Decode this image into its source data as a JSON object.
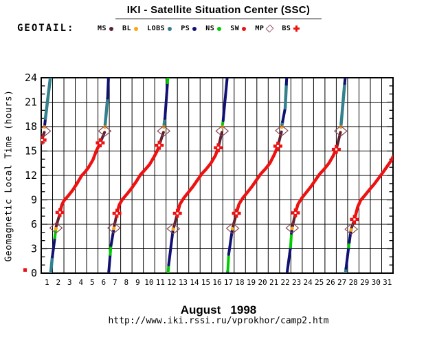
{
  "header": {
    "title": "IKI - Satellite Situation Center (SSC)",
    "satellite_label": "GEOTAIL:"
  },
  "legend": {
    "items": [
      {
        "label": "MS",
        "marker": "dot",
        "color": "#602030"
      },
      {
        "label": "BL",
        "marker": "dot",
        "color": "#ffa510"
      },
      {
        "label": "LOBS",
        "marker": "dot",
        "color": "#35808d"
      },
      {
        "label": "PS",
        "marker": "dot",
        "color": "#101173"
      },
      {
        "label": "NS",
        "marker": "dot",
        "color": "#00cc00"
      },
      {
        "label": "SW",
        "marker": "dot",
        "color": "#ee1111"
      },
      {
        "label": "MP",
        "marker": "diamond",
        "color": "#8a4a55"
      },
      {
        "label": "BS",
        "marker": "cross",
        "color": "#ee1111"
      }
    ]
  },
  "footer": {
    "month_year": "August   1998",
    "url": "http://www.iki.rssi.ru/vprokhor/camp2.htm"
  },
  "chart_data": {
    "type": "line",
    "title": "GEOTAIL geomagnetic local time vs day, August 1998",
    "xlabel": "",
    "ylabel": "Geomagnetic Local Time (hours)",
    "x_axis": {
      "range": [
        0,
        31
      ],
      "day_labels": [
        "1",
        "2",
        "3",
        "4",
        "5",
        "6",
        "7",
        "8",
        "9",
        "10",
        "11",
        "12",
        "13",
        "14",
        "15",
        "16",
        "17",
        "18",
        "19",
        "20",
        "21",
        "22",
        "23",
        "24",
        "25",
        "26",
        "27",
        "28",
        "29",
        "30",
        "31"
      ]
    },
    "y_axis": {
      "range": [
        0,
        24
      ],
      "major_ticks": [
        0,
        3,
        6,
        9,
        12,
        15,
        18,
        21,
        24
      ],
      "minor_step": 1,
      "grid_major_step": 3
    },
    "grid": "on",
    "colors": {
      "MS": "#602030",
      "BL": "#ffa510",
      "LOBS": "#35808d",
      "PS": "#101173",
      "NS": "#00cc00",
      "SW": "#ee1111",
      "MP": "#8a4a55",
      "BS": "#ee1111"
    },
    "line_widths": {
      "MS": 4,
      "BL": 4,
      "LOBS": 4.5,
      "PS": 4,
      "NS": 4,
      "SW": 4.5
    },
    "segments": [
      {
        "region": "MS",
        "points": [
          [
            0,
            16.1
          ],
          [
            0.27,
            17.3
          ]
        ]
      },
      {
        "region": "PS",
        "points": [
          [
            0.31,
            18.2
          ],
          [
            0.37,
            19.0
          ]
        ]
      },
      {
        "region": "LOBS",
        "points": [
          [
            0.37,
            19.0
          ],
          [
            0.82,
            24.2
          ]
        ]
      },
      {
        "region": "LOBS",
        "points": [
          [
            0.82,
            -0.2
          ],
          [
            0.98,
            2.0
          ]
        ]
      },
      {
        "region": "PS",
        "points": [
          [
            0.98,
            2.0
          ],
          [
            1.2,
            4.35
          ]
        ]
      },
      {
        "region": "NS",
        "points": [
          [
            1.2,
            4.35
          ],
          [
            1.27,
            5.2
          ]
        ]
      },
      {
        "region": "MS",
        "points": [
          [
            1.31,
            5.7
          ],
          [
            1.65,
            7.35
          ]
        ]
      },
      {
        "region": "SW",
        "points": [
          [
            1.65,
            7.45
          ],
          [
            1.82,
            8.4
          ],
          [
            2.0,
            8.9
          ],
          [
            2.35,
            9.45
          ],
          [
            2.75,
            10.15
          ],
          [
            3.15,
            11.0
          ],
          [
            3.55,
            11.95
          ],
          [
            3.85,
            12.4
          ],
          [
            4.15,
            12.95
          ],
          [
            4.55,
            13.9
          ],
          [
            4.85,
            15.0
          ],
          [
            5.2,
            16.0
          ]
        ]
      },
      {
        "region": "MS",
        "points": [
          [
            5.2,
            16.0
          ],
          [
            5.58,
            17.3
          ]
        ]
      },
      {
        "region": "LOBS",
        "points": [
          [
            5.63,
            18.2
          ],
          [
            5.85,
            21.5
          ]
        ]
      },
      {
        "region": "PS",
        "points": [
          [
            5.85,
            21.5
          ],
          [
            5.93,
            24.2
          ]
        ]
      },
      {
        "region": "PS",
        "points": [
          [
            5.93,
            -0.2
          ],
          [
            6.08,
            2.3
          ]
        ]
      },
      {
        "region": "NS",
        "points": [
          [
            6.08,
            2.3
          ],
          [
            6.15,
            3.4
          ]
        ]
      },
      {
        "region": "PS",
        "points": [
          [
            6.15,
            3.4
          ],
          [
            6.38,
            5.3
          ]
        ]
      },
      {
        "region": "MS",
        "points": [
          [
            6.43,
            5.75
          ],
          [
            6.67,
            7.3
          ]
        ]
      },
      {
        "region": "SW",
        "points": [
          [
            6.67,
            7.35
          ],
          [
            6.88,
            8.4
          ],
          [
            7.15,
            9.05
          ],
          [
            7.55,
            9.7
          ],
          [
            7.95,
            10.4
          ],
          [
            8.35,
            11.2
          ],
          [
            8.75,
            12.1
          ],
          [
            9.15,
            12.7
          ],
          [
            9.55,
            13.35
          ],
          [
            9.95,
            14.3
          ],
          [
            10.25,
            15.1
          ],
          [
            10.42,
            15.8
          ]
        ]
      },
      {
        "region": "MS",
        "points": [
          [
            10.42,
            15.8
          ],
          [
            10.77,
            17.3
          ]
        ]
      },
      {
        "region": "LOBS",
        "points": [
          [
            10.82,
            18.2
          ],
          [
            10.9,
            19.0
          ]
        ]
      },
      {
        "region": "PS",
        "points": [
          [
            10.9,
            19.0
          ],
          [
            11.13,
            23.4
          ]
        ]
      },
      {
        "region": "NS",
        "points": [
          [
            11.13,
            23.4
          ],
          [
            11.17,
            24.2
          ]
        ]
      },
      {
        "region": "NS",
        "points": [
          [
            11.17,
            -0.2
          ],
          [
            11.23,
            1.0
          ]
        ]
      },
      {
        "region": "PS",
        "points": [
          [
            11.23,
            1.0
          ],
          [
            11.6,
            5.2
          ]
        ]
      },
      {
        "region": "MS",
        "points": [
          [
            11.67,
            5.6
          ],
          [
            12.0,
            7.3
          ]
        ]
      },
      {
        "region": "SW",
        "points": [
          [
            12.0,
            7.35
          ],
          [
            12.22,
            8.45
          ],
          [
            12.55,
            9.2
          ],
          [
            12.95,
            9.9
          ],
          [
            13.35,
            10.6
          ],
          [
            13.75,
            11.4
          ],
          [
            14.15,
            12.2
          ],
          [
            14.55,
            12.8
          ],
          [
            14.95,
            13.5
          ],
          [
            15.35,
            14.45
          ],
          [
            15.62,
            15.5
          ]
        ]
      },
      {
        "region": "MS",
        "points": [
          [
            15.62,
            15.5
          ],
          [
            15.92,
            17.3
          ]
        ]
      },
      {
        "region": "NS",
        "points": [
          [
            15.97,
            18.2
          ],
          [
            16.03,
            18.75
          ]
        ]
      },
      {
        "region": "PS",
        "points": [
          [
            16.03,
            18.75
          ],
          [
            16.4,
            24.2
          ]
        ]
      },
      {
        "region": "PS",
        "points": [
          [
            16.4,
            -0.2
          ],
          [
            16.44,
            0.3
          ]
        ]
      },
      {
        "region": "NS",
        "points": [
          [
            16.44,
            0.3
          ],
          [
            16.52,
            2.3
          ]
        ]
      },
      {
        "region": "PS",
        "points": [
          [
            16.52,
            2.3
          ],
          [
            16.83,
            5.3
          ]
        ]
      },
      {
        "region": "MS",
        "points": [
          [
            16.89,
            5.7
          ],
          [
            17.2,
            7.3
          ]
        ]
      },
      {
        "region": "SW",
        "points": [
          [
            17.2,
            7.35
          ],
          [
            17.42,
            8.45
          ],
          [
            17.75,
            9.2
          ],
          [
            18.15,
            9.9
          ],
          [
            18.55,
            10.6
          ],
          [
            18.95,
            11.4
          ],
          [
            19.35,
            12.2
          ],
          [
            19.75,
            12.8
          ],
          [
            20.15,
            13.5
          ],
          [
            20.55,
            14.6
          ],
          [
            20.87,
            15.7
          ]
        ]
      },
      {
        "region": "MS",
        "points": [
          [
            20.87,
            15.7
          ],
          [
            21.17,
            17.35
          ]
        ]
      },
      {
        "region": "LOBS",
        "points": [
          [
            21.22,
            18.2
          ],
          [
            21.27,
            18.6
          ]
        ]
      },
      {
        "region": "PS",
        "points": [
          [
            21.27,
            18.6
          ],
          [
            21.5,
            20.3
          ]
        ]
      },
      {
        "region": "LOBS",
        "points": [
          [
            21.5,
            20.3
          ],
          [
            21.6,
            23.2
          ]
        ]
      },
      {
        "region": "PS",
        "points": [
          [
            21.6,
            23.2
          ],
          [
            21.64,
            24.2
          ]
        ]
      },
      {
        "region": "PS",
        "points": [
          [
            21.64,
            -0.2
          ],
          [
            21.97,
            3.2
          ]
        ]
      },
      {
        "region": "NS",
        "points": [
          [
            21.97,
            3.2
          ],
          [
            22.05,
            4.9
          ]
        ]
      },
      {
        "region": "PS",
        "points": [
          [
            22.05,
            4.9
          ],
          [
            22.09,
            5.3
          ]
        ]
      },
      {
        "region": "MS",
        "points": [
          [
            22.14,
            5.75
          ],
          [
            22.4,
            7.35
          ]
        ]
      },
      {
        "region": "SW",
        "points": [
          [
            22.4,
            7.4
          ],
          [
            22.62,
            8.45
          ],
          [
            22.95,
            9.2
          ],
          [
            23.35,
            9.9
          ],
          [
            23.75,
            10.6
          ],
          [
            24.15,
            11.4
          ],
          [
            24.55,
            12.2
          ],
          [
            24.95,
            12.8
          ],
          [
            25.35,
            13.5
          ],
          [
            25.72,
            14.4
          ],
          [
            26.02,
            15.3
          ]
        ]
      },
      {
        "region": "MS",
        "points": [
          [
            26.02,
            15.3
          ],
          [
            26.37,
            17.3
          ]
        ]
      },
      {
        "region": "LOBS",
        "points": [
          [
            26.42,
            18.2
          ],
          [
            26.74,
            23.3
          ]
        ]
      },
      {
        "region": "PS",
        "points": [
          [
            26.74,
            23.3
          ],
          [
            26.8,
            24.2
          ]
        ]
      },
      {
        "region": "LOBS",
        "points": [
          [
            26.8,
            -0.2
          ],
          [
            26.86,
            0.6
          ]
        ]
      },
      {
        "region": "PS",
        "points": [
          [
            26.86,
            0.6
          ],
          [
            27.09,
            3.2
          ]
        ]
      },
      {
        "region": "NS",
        "points": [
          [
            27.09,
            3.2
          ],
          [
            27.15,
            3.8
          ]
        ]
      },
      {
        "region": "PS",
        "points": [
          [
            27.15,
            3.8
          ],
          [
            27.28,
            5.15
          ]
        ]
      },
      {
        "region": "MS",
        "points": [
          [
            27.34,
            5.55
          ],
          [
            27.6,
            6.55
          ]
        ]
      },
      {
        "region": "SW",
        "points": [
          [
            27.6,
            6.6
          ],
          [
            27.88,
            8.1
          ],
          [
            28.15,
            8.95
          ],
          [
            28.55,
            9.6
          ],
          [
            28.95,
            10.3
          ],
          [
            29.35,
            10.95
          ],
          [
            29.75,
            11.7
          ],
          [
            30.15,
            12.45
          ],
          [
            30.55,
            13.25
          ],
          [
            30.85,
            13.85
          ],
          [
            31.0,
            14.3
          ]
        ]
      }
    ],
    "bl_markers": [
      [
        0.3,
        17.95
      ],
      [
        1.29,
        5.45
      ],
      [
        5.61,
        17.95
      ],
      [
        6.4,
        5.5
      ],
      [
        10.8,
        17.95
      ],
      [
        11.63,
        5.4
      ],
      [
        15.95,
        17.95
      ],
      [
        16.86,
        5.45
      ],
      [
        21.2,
        17.95
      ],
      [
        22.11,
        5.5
      ],
      [
        26.4,
        17.95
      ],
      [
        27.31,
        5.3
      ]
    ],
    "mp_markers": [
      [
        0.28,
        17.45
      ],
      [
        1.3,
        5.55
      ],
      [
        5.6,
        17.45
      ],
      [
        6.41,
        5.55
      ],
      [
        10.79,
        17.45
      ],
      [
        11.64,
        5.45
      ],
      [
        15.94,
        17.45
      ],
      [
        16.87,
        5.5
      ],
      [
        21.19,
        17.5
      ],
      [
        22.12,
        5.55
      ],
      [
        26.39,
        17.45
      ],
      [
        27.32,
        5.4
      ]
    ],
    "bs_markers": [
      [
        0.07,
        16.35
      ],
      [
        1.65,
        7.45
      ],
      [
        5.2,
        16.0
      ],
      [
        6.67,
        7.35
      ],
      [
        10.4,
        15.7
      ],
      [
        12.0,
        7.35
      ],
      [
        15.6,
        15.4
      ],
      [
        17.2,
        7.35
      ],
      [
        20.85,
        15.6
      ],
      [
        22.4,
        7.4
      ],
      [
        26.0,
        15.2
      ],
      [
        27.6,
        6.6
      ]
    ],
    "stray_point": {
      "color": "#ee1111",
      "note": "small red square left of y-axis 0 label"
    }
  }
}
